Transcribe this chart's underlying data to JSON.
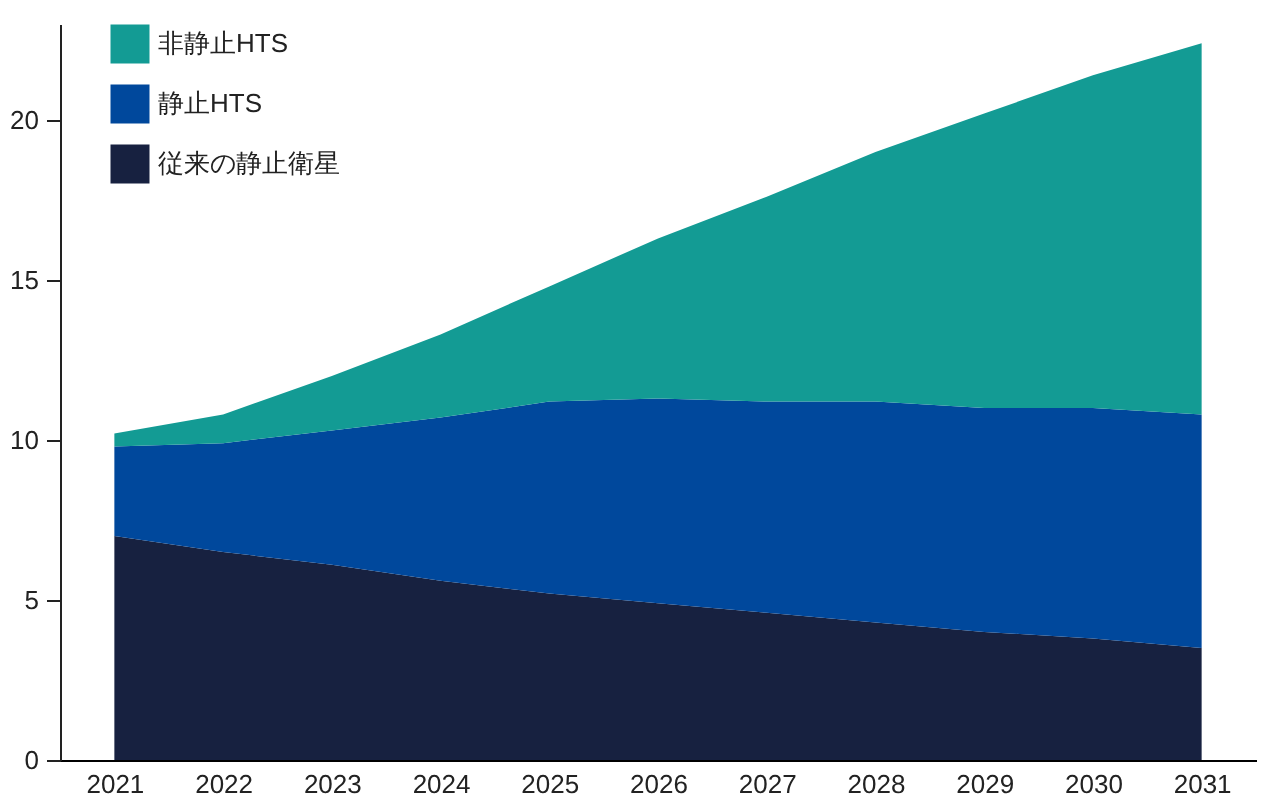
{
  "chart_data": {
    "type": "area",
    "stacked": true,
    "categories": [
      "2021",
      "2022",
      "2023",
      "2024",
      "2025",
      "2026",
      "2027",
      "2028",
      "2029",
      "2030",
      "2031"
    ],
    "series": [
      {
        "name": "従来の静止衛星",
        "color": "#172140",
        "values": [
          7.0,
          6.5,
          6.1,
          5.6,
          5.2,
          4.9,
          4.6,
          4.3,
          4.0,
          3.8,
          3.5
        ]
      },
      {
        "name": "静止HTS",
        "color": "#00489c",
        "values": [
          2.8,
          3.4,
          4.2,
          5.1,
          6.0,
          6.4,
          6.6,
          6.9,
          7.0,
          7.2,
          7.3
        ]
      },
      {
        "name": "非静止HTS",
        "color": "#139b94",
        "values": [
          0.4,
          0.9,
          1.7,
          2.6,
          3.6,
          5.0,
          6.4,
          7.8,
          9.2,
          10.4,
          11.6
        ]
      }
    ],
    "ylim": [
      0,
      23
    ],
    "yticks": [
      0,
      5,
      10,
      15,
      20
    ],
    "grid": false,
    "legend": "top left"
  }
}
